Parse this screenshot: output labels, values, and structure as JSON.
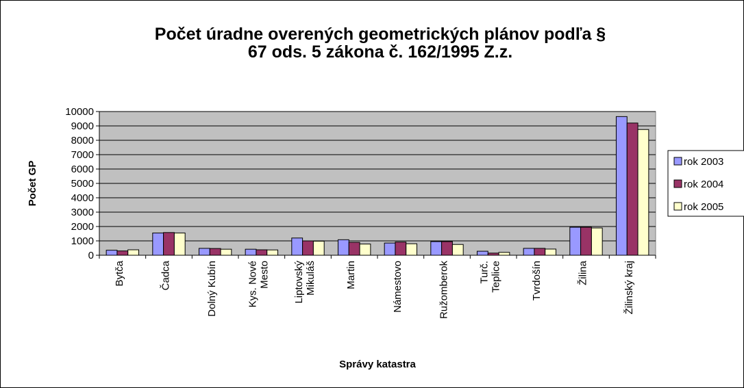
{
  "chart_data": {
    "type": "bar",
    "title": "Počet úradne overených geometrických plánov podľa §\n67 ods. 5 zákona č. 162/1995 Z.z.",
    "x_label": "Správy katastra",
    "y_label": "Počet GP",
    "categories": [
      "Bytča",
      "Čadca",
      "Dolný Kubín",
      "Kys. Nové\nMesto",
      "Liptovský\nMikuláš",
      "Martin",
      "Námestovo",
      "Ružomberok",
      "Turč.\nTeplice",
      "Tvrdošín",
      "Žilina",
      "Žilinský kraj"
    ],
    "series": [
      {
        "name": "rok 2003",
        "color": "#9999ff",
        "values": [
          350,
          1550,
          480,
          420,
          1200,
          1080,
          850,
          950,
          280,
          480,
          1950,
          9650
        ]
      },
      {
        "name": "rok 2004",
        "color": "#993366",
        "values": [
          300,
          1580,
          470,
          380,
          1000,
          900,
          920,
          950,
          150,
          480,
          1950,
          9200
        ]
      },
      {
        "name": "rok 2005",
        "color": "#ffffcc",
        "values": [
          380,
          1550,
          420,
          370,
          980,
          780,
          800,
          750,
          200,
          430,
          1900,
          8750
        ]
      }
    ],
    "ylim": [
      0,
      10000
    ],
    "yticks": [
      0,
      1000,
      2000,
      3000,
      4000,
      5000,
      6000,
      7000,
      8000,
      9000,
      10000
    ],
    "grid": true,
    "legend": "right"
  }
}
